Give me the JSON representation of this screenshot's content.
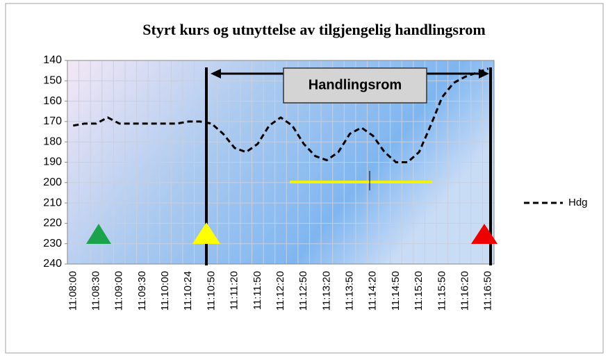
{
  "chart_data": {
    "type": "line",
    "title": "Styrt kurs og utnyttelse av tilgjengelig handlingsrom",
    "annotations": [
      "Handlingsrom"
    ],
    "categories": [
      "11:08:00",
      null,
      "11:08:30",
      null,
      "11:09:00",
      null,
      "11:09:30",
      null,
      "11:10:00",
      null,
      "11:10:24",
      null,
      "11:10:50",
      null,
      "11:11:20",
      null,
      "11:11:50",
      null,
      "11:12:20",
      null,
      "11:12:50",
      null,
      "11:13:20",
      null,
      "11:13:50",
      null,
      "11:14:20",
      null,
      "11:14:50",
      null,
      "11:15:20",
      null,
      "11:15:50",
      null,
      "11:16:20",
      null,
      "11:16:50"
    ],
    "series": [
      {
        "name": "Hdg",
        "color": "#000000",
        "dash": true,
        "values": [
          172,
          171,
          171,
          168,
          171,
          171,
          171,
          171,
          171,
          171,
          170,
          170,
          171,
          176,
          183,
          185,
          181,
          172,
          168,
          172,
          181,
          187,
          189,
          185,
          176,
          173,
          177,
          185,
          190,
          190,
          185,
          172,
          158,
          151,
          148,
          146,
          144
        ]
      }
    ],
    "ylim": [
      140,
      240
    ],
    "y_inverted": true,
    "yticks": [
      140,
      150,
      160,
      170,
      180,
      190,
      200,
      210,
      220,
      230,
      240
    ],
    "grid": true,
    "legend": "right"
  }
}
